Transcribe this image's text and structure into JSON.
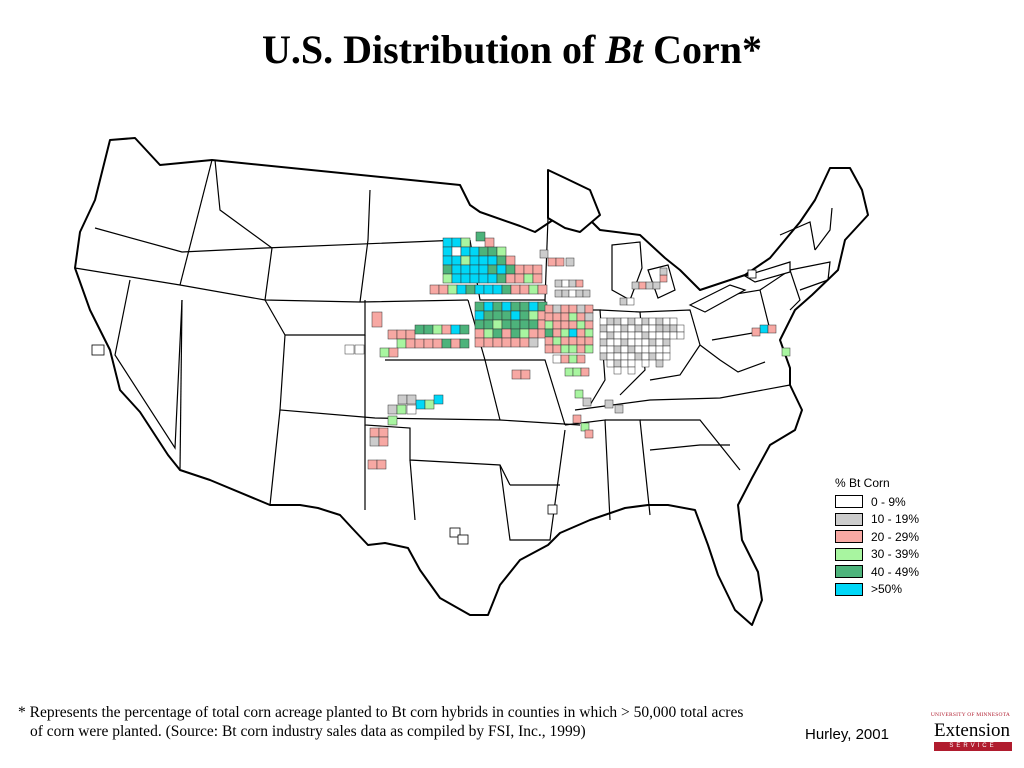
{
  "title": {
    "prefix": "U.S. Distribution of ",
    "italic": "Bt",
    "suffix": " Corn*"
  },
  "legend": {
    "title": "% Bt Corn",
    "items": [
      {
        "label": "0 - 9%",
        "color": "#ffffff"
      },
      {
        "label": "10 - 19%",
        "color": "#cccccc"
      },
      {
        "label": "20 - 29%",
        "color": "#f7a8a3"
      },
      {
        "label": "30 - 39%",
        "color": "#a8f5a0"
      },
      {
        "label": "40 - 49%",
        "color": "#4db37b"
      },
      {
        "label": ">50%",
        "color": "#00d7f7"
      }
    ]
  },
  "footnote": {
    "line1": "* Represents the percentage of total corn acreage planted to Bt corn hybrids in counties in which  > 50,000 total acres",
    "line2": "of corn were planted.  (Source:  Bt corn industry sales data as compiled by FSI, Inc., 1999)"
  },
  "credit": "Hurley, 2001",
  "logo": {
    "university": "UNIVERSITY OF MINNESOTA",
    "name": "Extension",
    "service": "SERVICE"
  }
}
